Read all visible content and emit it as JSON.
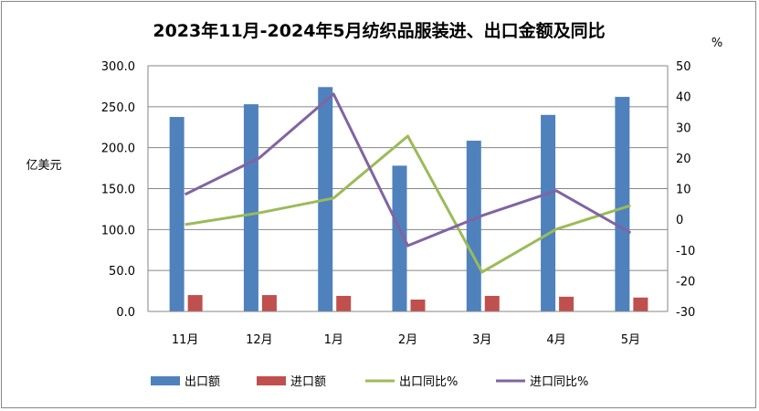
{
  "chart_data": {
    "type": "bar",
    "title": "2023年11月-2024年5月纺织品服装进、出口金额及同比",
    "ylabel": "亿美元",
    "y2label": "%",
    "categories": [
      "11月",
      "12月",
      "1月",
      "2月",
      "3月",
      "4月",
      "5月"
    ],
    "ylim": [
      0,
      300
    ],
    "yticks": [
      "0.0",
      "50.0",
      "100.0",
      "150.0",
      "200.0",
      "250.0",
      "300.0"
    ],
    "y2lim": [
      -30,
      50
    ],
    "y2ticks": [
      "-30",
      "-20",
      "-10",
      "0",
      "10",
      "20",
      "30",
      "40",
      "50"
    ],
    "grid": true,
    "legend_position": "bottom",
    "series": [
      {
        "name": "出口额",
        "kind": "bar",
        "axis": "left",
        "color": "#4F81BD",
        "values": [
          237.5,
          253,
          274,
          178,
          208.5,
          240,
          262
        ]
      },
      {
        "name": "进口额",
        "kind": "bar",
        "axis": "left",
        "color": "#C0504D",
        "values": [
          20,
          20,
          19,
          14.5,
          19,
          18,
          17
        ]
      },
      {
        "name": "出口同比%",
        "kind": "line",
        "axis": "right",
        "color": "#9BBB59",
        "values": [
          -1.7,
          2.1,
          6.9,
          27.1,
          -17.2,
          -3.2,
          4.5
        ]
      },
      {
        "name": "进口同比%",
        "kind": "line",
        "axis": "right",
        "color": "#8064A2",
        "values": [
          8.1,
          20.0,
          40.8,
          -8.6,
          1.2,
          9.3,
          -4.4
        ]
      }
    ]
  }
}
